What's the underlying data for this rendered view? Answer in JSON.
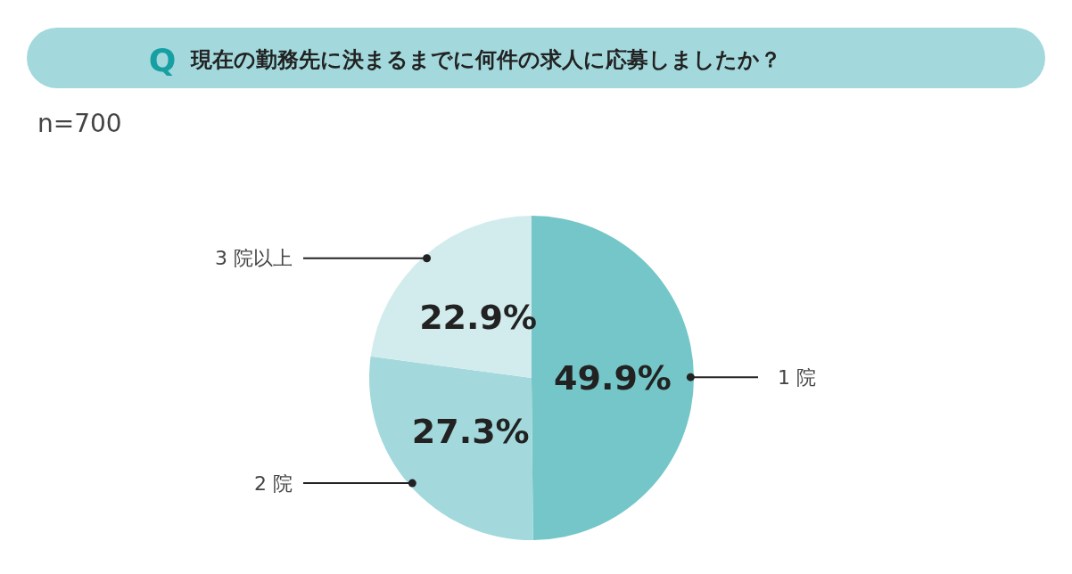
{
  "chart_data": {
    "type": "pie",
    "title": "現在の勤務先に決まるまでに何件の求人に応募しましたか？",
    "annotations": [
      "Q",
      "n=700"
    ],
    "categories": [
      "1 院",
      "2 院",
      "3 院以上"
    ],
    "values": [
      49.9,
      27.3,
      22.9
    ],
    "value_labels": [
      "49.9%",
      "27.3%",
      "22.9%"
    ],
    "colors": [
      "#74c6c8",
      "#a3d9dc",
      "#d2ecee"
    ]
  }
}
